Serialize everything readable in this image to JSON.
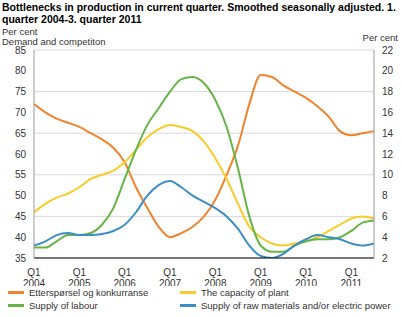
{
  "chart_data": {
    "type": "line",
    "title": "Bottlenecks in production in current quarter. Smoothed seasonally adjusted. 1. quarter 2004-3. quarter 2011",
    "y_label": "Per cent",
    "y_label_2": "Demand and competiton",
    "y2_label": "Per cent",
    "categories": [
      "Q1 2004",
      null,
      null,
      null,
      "Q1 2005",
      null,
      null,
      null,
      "Q1 2006",
      null,
      null,
      null,
      "Q1 2007",
      null,
      null,
      null,
      "Q1 2008",
      null,
      null,
      null,
      "Q1 2009",
      null,
      null,
      null,
      "Q1 2010",
      null,
      null,
      null,
      "Q1 2011",
      null,
      null
    ],
    "ylim": [
      35,
      85
    ],
    "yticks": [
      35,
      40,
      45,
      50,
      55,
      60,
      65,
      70,
      75,
      80,
      85
    ],
    "y2lim": [
      2,
      22
    ],
    "y2ticks": [
      2,
      4,
      6,
      8,
      10,
      12,
      14,
      16,
      18,
      20,
      22
    ],
    "grid": true,
    "legend": "bottom",
    "series": [
      {
        "name": "Etterspørsel og konkurranse",
        "color": "#f0832d",
        "values": [
          72,
          70,
          68.5,
          67.5,
          66.5,
          65,
          63.5,
          61.5,
          58,
          52,
          47,
          42.5,
          40,
          41,
          42.5,
          45,
          49,
          55,
          62,
          72,
          79,
          78.5,
          76.5,
          75,
          73.5,
          71.5,
          69,
          65.5,
          64.5,
          65,
          65.5
        ]
      },
      {
        "name": "The capacity of plant",
        "color": "#f7cc2b",
        "axis": "y2",
        "values": [
          6.4,
          7.2,
          7.8,
          8.2,
          8.8,
          9.6,
          10.0,
          10.4,
          11.2,
          12.4,
          13.6,
          14.4,
          14.8,
          14.6,
          14.2,
          13.2,
          11.6,
          9.6,
          7.2,
          5.0,
          4.0,
          3.4,
          3.2,
          3.4,
          3.6,
          4.0,
          4.6,
          5.2,
          5.8,
          6.0,
          5.8
        ]
      },
      {
        "name": "Supply of labour",
        "color": "#66b446",
        "axis": "y2",
        "values": [
          3.0,
          3.0,
          3.6,
          4.2,
          4.2,
          4.4,
          5.2,
          6.8,
          9.6,
          12.4,
          14.8,
          16.4,
          18.0,
          19.2,
          19.4,
          18.8,
          17.2,
          14.6,
          10.6,
          6.0,
          3.2,
          2.6,
          2.6,
          3.2,
          3.6,
          3.8,
          3.8,
          4.0,
          4.6,
          5.4,
          5.6
        ]
      },
      {
        "name": "Supply of raw materials and/or electric power",
        "color": "#3b8fc6",
        "axis": "y2",
        "values": [
          3.2,
          3.6,
          4.2,
          4.4,
          4.2,
          4.2,
          4.3,
          4.6,
          5.2,
          6.4,
          8.0,
          9.0,
          9.4,
          8.8,
          8.0,
          7.4,
          6.8,
          6.0,
          4.8,
          3.2,
          2.2,
          2.0,
          2.4,
          3.2,
          3.8,
          4.2,
          4.0,
          3.8,
          3.4,
          3.2,
          3.4
        ]
      }
    ]
  }
}
